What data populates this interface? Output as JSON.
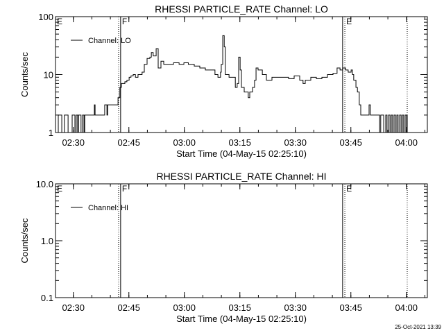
{
  "footer_timestamp": "25-Oct-2021 13:39",
  "chart_data": [
    {
      "type": "line",
      "title": "RHESSI PARTICLE_RATE Channel: LO",
      "xlabel": "Start Time (04-May-15 02:25:10)",
      "ylabel": "Counts/sec",
      "x_units": "minutes after 02:25:10",
      "xlim": [
        0,
        100.5
      ],
      "ylim": [
        1,
        100
      ],
      "yscale": "log",
      "x_ticks": [
        {
          "value": 4.83,
          "label": "02:30"
        },
        {
          "value": 19.83,
          "label": "02:45"
        },
        {
          "value": 34.83,
          "label": "03:00"
        },
        {
          "value": 49.83,
          "label": "03:15"
        },
        {
          "value": 64.83,
          "label": "03:30"
        },
        {
          "value": 79.83,
          "label": "03:45"
        },
        {
          "value": 94.83,
          "label": "04:00"
        }
      ],
      "y_ticks": [
        {
          "value": 1,
          "label": "1"
        },
        {
          "value": 10,
          "label": "10"
        },
        {
          "value": 100,
          "label": "100"
        }
      ],
      "legend": {
        "label": "Channel: LO",
        "position": "top-left"
      },
      "markers": [
        {
          "value": 0,
          "style": "none",
          "label": "E"
        },
        {
          "value": 17.06,
          "style": "dotted",
          "label": ""
        },
        {
          "value": 17.6,
          "style": "solid",
          "label": "F"
        },
        {
          "value": 77.6,
          "style": "solid",
          "label": ""
        },
        {
          "value": 78.2,
          "style": "dotted",
          "label": "E"
        },
        {
          "value": 95.06,
          "style": "dotted",
          "label": ""
        }
      ],
      "series": [
        {
          "name": "Channel: LO",
          "points": [
            [
              0,
              1
            ],
            [
              0.75,
              2
            ],
            [
              1.5,
              2
            ],
            [
              1.7,
              1
            ],
            [
              2.25,
              1
            ],
            [
              2.4,
              2
            ],
            [
              3.2,
              2
            ],
            [
              3.4,
              1
            ],
            [
              4.3,
              1
            ],
            [
              4.5,
              2
            ],
            [
              5.1,
              2
            ],
            [
              5.25,
              1
            ],
            [
              5.6,
              2
            ],
            [
              6,
              1
            ],
            [
              6.2,
              2
            ],
            [
              6.75,
              2
            ],
            [
              6.9,
              1
            ],
            [
              7.3,
              2
            ],
            [
              7.7,
              1
            ],
            [
              7.9,
              2
            ],
            [
              10.3,
              2
            ],
            [
              10.5,
              3
            ],
            [
              10.7,
              2
            ],
            [
              13.1,
              2
            ],
            [
              13.3,
              3
            ],
            [
              13.9,
              2
            ],
            [
              14.1,
              3
            ],
            [
              14.6,
              3
            ],
            [
              16.5,
              3
            ],
            [
              16.9,
              4
            ],
            [
              17.4,
              6
            ],
            [
              17.8,
              7
            ],
            [
              18.75,
              7.5
            ],
            [
              19.3,
              8
            ],
            [
              19.9,
              9
            ],
            [
              20.4,
              9.5
            ],
            [
              21,
              10
            ],
            [
              21.6,
              9
            ],
            [
              22.3,
              10
            ],
            [
              23.4,
              11
            ],
            [
              24,
              15
            ],
            [
              24.75,
              19
            ],
            [
              25.5,
              20
            ],
            [
              25.9,
              24
            ],
            [
              26.4,
              21
            ],
            [
              27.2,
              28
            ],
            [
              27.75,
              13
            ],
            [
              28.5,
              17
            ],
            [
              29.25,
              15
            ],
            [
              30.4,
              15
            ],
            [
              31.9,
              16
            ],
            [
              33.4,
              15
            ],
            [
              34.7,
              16
            ],
            [
              35.9,
              15
            ],
            [
              37.5,
              14
            ],
            [
              39,
              13
            ],
            [
              40.5,
              12
            ],
            [
              42,
              12
            ],
            [
              43.1,
              10
            ],
            [
              43.9,
              9
            ],
            [
              44.6,
              11
            ],
            [
              44.8,
              15
            ],
            [
              45.2,
              47
            ],
            [
              45.6,
              30
            ],
            [
              45.9,
              10
            ],
            [
              46.9,
              9
            ],
            [
              48,
              9
            ],
            [
              48.6,
              6
            ],
            [
              49.1,
              7
            ],
            [
              49.5,
              20
            ],
            [
              49.9,
              12
            ],
            [
              50.25,
              6
            ],
            [
              51,
              5
            ],
            [
              51.75,
              5
            ],
            [
              52.1,
              4
            ],
            [
              52.5,
              5
            ],
            [
              52.9,
              5
            ],
            [
              53.25,
              6
            ],
            [
              53.8,
              8
            ],
            [
              54.2,
              13
            ],
            [
              54.75,
              12
            ],
            [
              55.9,
              10
            ],
            [
              57,
              8
            ],
            [
              58.5,
              9
            ],
            [
              60,
              9
            ],
            [
              61.5,
              9
            ],
            [
              63,
              8.5
            ],
            [
              64.5,
              9.5
            ],
            [
              66,
              8
            ],
            [
              66.9,
              7
            ],
            [
              67.5,
              8
            ],
            [
              69,
              9
            ],
            [
              70.5,
              8.5
            ],
            [
              72,
              9
            ],
            [
              73.5,
              10
            ],
            [
              75,
              10.5
            ],
            [
              76.1,
              13
            ],
            [
              76.9,
              12
            ],
            [
              77.6,
              13
            ],
            [
              78.4,
              12
            ],
            [
              79.1,
              11
            ],
            [
              79.9,
              12
            ],
            [
              80.25,
              10
            ],
            [
              80.6,
              8
            ],
            [
              81.2,
              6
            ],
            [
              81.6,
              5
            ],
            [
              82.1,
              3
            ],
            [
              82.5,
              2
            ],
            [
              84.4,
              2
            ],
            [
              84.75,
              3
            ],
            [
              85.1,
              2
            ],
            [
              87.4,
              2
            ],
            [
              87.6,
              1
            ],
            [
              87.9,
              2
            ],
            [
              88.5,
              2
            ],
            [
              88.7,
              1
            ],
            [
              89.25,
              2
            ],
            [
              89.6,
              1
            ],
            [
              90,
              2
            ],
            [
              90.4,
              1
            ],
            [
              90.75,
              2
            ],
            [
              91.1,
              1
            ],
            [
              91.5,
              2
            ],
            [
              91.9,
              1
            ],
            [
              92.25,
              2
            ],
            [
              92.6,
              1
            ],
            [
              93,
              2
            ],
            [
              93.4,
              1
            ],
            [
              93.75,
              2
            ],
            [
              94.1,
              1
            ],
            [
              94.5,
              2
            ],
            [
              94.9,
              1
            ],
            [
              95.06,
              2
            ]
          ]
        }
      ]
    },
    {
      "type": "line",
      "title": "RHESSI PARTICLE_RATE Channel: HI",
      "xlabel": "Start Time (04-May-15 02:25:10)",
      "ylabel": "Counts/sec",
      "x_units": "minutes after 02:25:10",
      "xlim": [
        0,
        100.5
      ],
      "ylim": [
        0.1,
        10
      ],
      "yscale": "log",
      "x_ticks": [
        {
          "value": 4.83,
          "label": "02:30"
        },
        {
          "value": 19.83,
          "label": "02:45"
        },
        {
          "value": 34.83,
          "label": "03:00"
        },
        {
          "value": 49.83,
          "label": "03:15"
        },
        {
          "value": 64.83,
          "label": "03:30"
        },
        {
          "value": 79.83,
          "label": "03:45"
        },
        {
          "value": 94.83,
          "label": "04:00"
        }
      ],
      "y_ticks": [
        {
          "value": 0.1,
          "label": "0.1"
        },
        {
          "value": 1,
          "label": "1.0"
        },
        {
          "value": 10,
          "label": "10.0"
        }
      ],
      "legend": {
        "label": "Channel: HI",
        "position": "top-left"
      },
      "markers": [
        {
          "value": 0,
          "style": "none",
          "label": "E"
        },
        {
          "value": 17.06,
          "style": "dotted",
          "label": ""
        },
        {
          "value": 17.6,
          "style": "solid",
          "label": "F"
        },
        {
          "value": 77.6,
          "style": "solid",
          "label": ""
        },
        {
          "value": 78.2,
          "style": "dotted",
          "label": "E"
        },
        {
          "value": 95.06,
          "style": "dotted",
          "label": ""
        }
      ],
      "series": [
        {
          "name": "Channel: HI",
          "points": []
        }
      ]
    }
  ]
}
